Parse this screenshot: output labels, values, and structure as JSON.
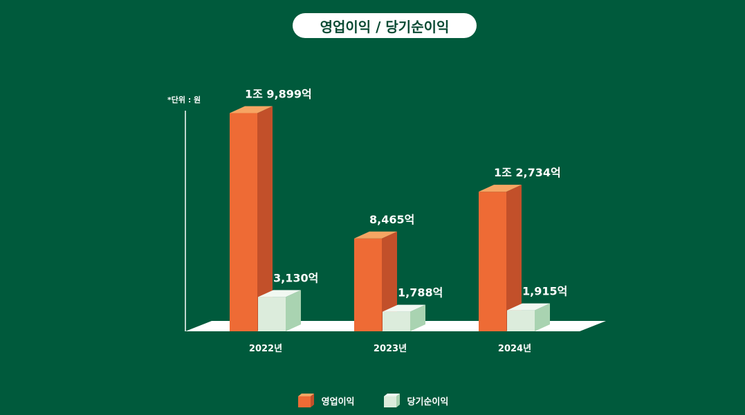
{
  "title": "영업이익 / 당기순이익",
  "unit_note": "*단위 : 원",
  "colors": {
    "background": "#005a3c",
    "operating_front": "#ee6b35",
    "operating_side": "#c2502a",
    "operating_top": "#f6a563",
    "net_front": "#dcecdc",
    "net_side": "#a9d3b1",
    "net_top": "#f1f8f1"
  },
  "chart_data": {
    "type": "bar",
    "categories": [
      "2022년",
      "2023년",
      "2024년"
    ],
    "series": [
      {
        "name": "영업이익",
        "values": [
          19899,
          8465,
          12734
        ],
        "labels": [
          "1조 9,899억",
          "8,465억",
          "1조 2,734억"
        ]
      },
      {
        "name": "당기순이익",
        "values": [
          3130,
          1788,
          1915
        ],
        "labels": [
          "3,130억",
          "1,788억",
          "1,915억"
        ]
      }
    ],
    "ylabel": "*단위 : 원",
    "ylim": [
      0,
      20500
    ],
    "grid": false,
    "legend": "bottom-center"
  }
}
